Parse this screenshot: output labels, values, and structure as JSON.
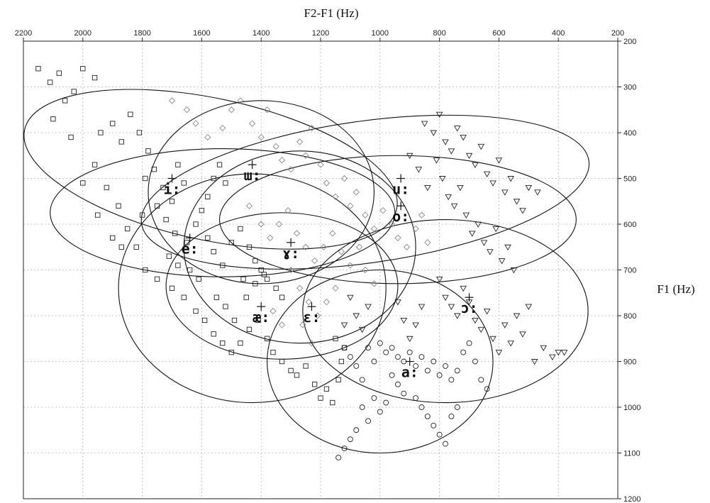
{
  "chart_data": {
    "type": "scatter",
    "title": "",
    "xlabel": "F2-F1 (Hz)",
    "ylabel": "F1 (Hz)",
    "xlim": [
      2200,
      200
    ],
    "ylim": [
      200,
      1200
    ],
    "x_reversed": true,
    "y_reversed": true,
    "x_axis_position": "top",
    "y_axis_position": "right",
    "grid": true,
    "x_ticks": [
      2200,
      2000,
      1800,
      1600,
      1400,
      1200,
      1000,
      800,
      600,
      400,
      200
    ],
    "y_ticks": [
      200,
      300,
      400,
      500,
      600,
      700,
      800,
      900,
      1000,
      1100,
      1200
    ],
    "x_tick_labels": [
      "2200",
      "2000",
      "1800",
      "1600",
      "1400",
      "1200",
      "1000",
      "800",
      "600",
      "400",
      "200"
    ],
    "y_tick_labels": [
      "200",
      "300",
      "400",
      "500",
      "600",
      "700",
      "800",
      "900",
      "1000",
      "1100",
      "1200"
    ],
    "vowels": [
      {
        "label": "i:",
        "centroid": [
          1700,
          500
        ],
        "ellipse": {
          "cx": 1570,
          "cy": 480,
          "rx": 640,
          "ry": 155,
          "rotate": 12
        },
        "marker": "square"
      },
      {
        "label": "ɯ:",
        "centroid": [
          1430,
          470
        ],
        "ellipse": {
          "cx": 1400,
          "cy": 530,
          "rx": 380,
          "ry": 200,
          "rotate": 0
        },
        "marker": "diamond"
      },
      {
        "label": "u:",
        "centroid": [
          930,
          500
        ],
        "ellipse": {
          "cx": 1050,
          "cy": 530,
          "rx": 760,
          "ry": 155,
          "rotate": -8
        },
        "marker": "triangle"
      },
      {
        "label": "o:",
        "centroid": [
          930,
          560
        ],
        "ellipse": {
          "cx": 940,
          "cy": 590,
          "rx": 600,
          "ry": 140,
          "rotate": 0
        },
        "marker": "diamond"
      },
      {
        "label": "e:",
        "centroid": [
          1640,
          630
        ],
        "ellipse": {
          "cx": 1530,
          "cy": 575,
          "rx": 580,
          "ry": 140,
          "rotate": 0
        },
        "marker": "square"
      },
      {
        "label": "ɤ:",
        "centroid": [
          1300,
          640
        ],
        "ellipse": {
          "cx": 1270,
          "cy": 650,
          "rx": 390,
          "ry": 210,
          "rotate": 0
        },
        "marker": "diamond"
      },
      {
        "label": "ɛ:",
        "centroid": [
          1230,
          780
        ],
        "ellipse": {
          "cx": 1330,
          "cy": 735,
          "rx": 390,
          "ry": 160,
          "rotate": 0
        },
        "marker": "diamond"
      },
      {
        "label": "æ:",
        "centroid": [
          1400,
          780
        ],
        "ellipse": {
          "cx": 1430,
          "cy": 740,
          "rx": 450,
          "ry": 250,
          "rotate": 0
        },
        "marker": "square"
      },
      {
        "label": "a:",
        "centroid": [
          900,
          900
        ],
        "ellipse": {
          "cx": 1000,
          "cy": 900,
          "rx": 380,
          "ry": 200,
          "rotate": 0
        },
        "marker": "circle"
      },
      {
        "label": "ɔ:",
        "centroid": [
          700,
          760
        ],
        "ellipse": {
          "cx": 780,
          "cy": 790,
          "rx": 480,
          "ry": 200,
          "rotate": 0
        },
        "marker": "triangle"
      }
    ],
    "points": {
      "square": [
        [
          2150,
          260
        ],
        [
          2110,
          290
        ],
        [
          2080,
          270
        ],
        [
          2060,
          330
        ],
        [
          2030,
          310
        ],
        [
          2000,
          260
        ],
        [
          1960,
          280
        ],
        [
          2100,
          370
        ],
        [
          2040,
          410
        ],
        [
          1940,
          400
        ],
        [
          1900,
          380
        ],
        [
          1870,
          420
        ],
        [
          1840,
          360
        ],
        [
          1810,
          400
        ],
        [
          1780,
          440
        ],
        [
          1760,
          480
        ],
        [
          1790,
          500
        ],
        [
          1730,
          520
        ],
        [
          1700,
          550
        ],
        [
          1680,
          470
        ],
        [
          1660,
          510
        ],
        [
          1750,
          560
        ],
        [
          1720,
          590
        ],
        [
          1690,
          620
        ],
        [
          1650,
          640
        ],
        [
          1620,
          600
        ],
        [
          1600,
          570
        ],
        [
          1580,
          630
        ],
        [
          1560,
          660
        ],
        [
          1530,
          690
        ],
        [
          1500,
          640
        ],
        [
          1470,
          610
        ],
        [
          1440,
          650
        ],
        [
          1420,
          680
        ],
        [
          1400,
          700
        ],
        [
          1380,
          720
        ],
        [
          1350,
          740
        ],
        [
          1330,
          760
        ],
        [
          1960,
          470
        ],
        [
          1920,
          520
        ],
        [
          1880,
          560
        ],
        [
          1850,
          610
        ],
        [
          1900,
          630
        ],
        [
          2000,
          510
        ],
        [
          1950,
          580
        ],
        [
          1870,
          650
        ],
        [
          1800,
          580
        ],
        [
          1820,
          650
        ],
        [
          1790,
          700
        ],
        [
          1750,
          720
        ],
        [
          1700,
          740
        ],
        [
          1660,
          760
        ],
        [
          1620,
          790
        ],
        [
          1590,
          810
        ],
        [
          1560,
          840
        ],
        [
          1530,
          860
        ],
        [
          1500,
          880
        ],
        [
          1470,
          860
        ],
        [
          1440,
          830
        ],
        [
          1410,
          810
        ],
        [
          1380,
          850
        ],
        [
          1360,
          880
        ],
        [
          1330,
          900
        ],
        [
          1300,
          920
        ],
        [
          1280,
          930
        ],
        [
          1250,
          910
        ],
        [
          1220,
          950
        ],
        [
          1200,
          980
        ],
        [
          1180,
          960
        ],
        [
          1160,
          990
        ],
        [
          1140,
          940
        ],
        [
          1130,
          900
        ],
        [
          1120,
          870
        ],
        [
          1150,
          850
        ],
        [
          1450,
          760
        ],
        [
          1420,
          730
        ],
        [
          1390,
          710
        ],
        [
          1460,
          720
        ],
        [
          1520,
          780
        ],
        [
          1490,
          810
        ],
        [
          1550,
          760
        ],
        [
          1610,
          720
        ],
        [
          1640,
          700
        ],
        [
          1680,
          690
        ],
        [
          1710,
          670
        ],
        [
          1580,
          540
        ],
        [
          1560,
          500
        ],
        [
          1540,
          470
        ],
        [
          1520,
          510
        ]
      ],
      "diamond": [
        [
          1700,
          330
        ],
        [
          1650,
          350
        ],
        [
          1620,
          380
        ],
        [
          1580,
          410
        ],
        [
          1530,
          390
        ],
        [
          1500,
          350
        ],
        [
          1470,
          330
        ],
        [
          1430,
          380
        ],
        [
          1400,
          410
        ],
        [
          1380,
          350
        ],
        [
          1350,
          430
        ],
        [
          1330,
          460
        ],
        [
          1300,
          480
        ],
        [
          1270,
          420
        ],
        [
          1250,
          450
        ],
        [
          1230,
          390
        ],
        [
          1200,
          470
        ],
        [
          1180,
          510
        ],
        [
          1150,
          540
        ],
        [
          1120,
          500
        ],
        [
          1100,
          560
        ],
        [
          1080,
          530
        ],
        [
          1050,
          580
        ],
        [
          1020,
          610
        ],
        [
          990,
          570
        ],
        [
          960,
          600
        ],
        [
          940,
          630
        ],
        [
          910,
          650
        ],
        [
          880,
          610
        ],
        [
          860,
          580
        ],
        [
          840,
          640
        ],
        [
          1440,
          560
        ],
        [
          1400,
          600
        ],
        [
          1370,
          630
        ],
        [
          1340,
          600
        ],
        [
          1310,
          570
        ],
        [
          1280,
          620
        ],
        [
          1250,
          650
        ],
        [
          1220,
          680
        ],
        [
          1190,
          650
        ],
        [
          1160,
          620
        ],
        [
          1130,
          660
        ],
        [
          1100,
          690
        ],
        [
          1070,
          650
        ],
        [
          1050,
          700
        ],
        [
          1020,
          730
        ],
        [
          1300,
          700
        ],
        [
          1270,
          740
        ],
        [
          1240,
          770
        ],
        [
          1210,
          800
        ],
        [
          1180,
          770
        ],
        [
          1150,
          740
        ],
        [
          1260,
          820
        ],
        [
          1230,
          860
        ],
        [
          1330,
          820
        ],
        [
          1360,
          790
        ]
      ],
      "triangle": [
        [
          850,
          380
        ],
        [
          820,
          400
        ],
        [
          800,
          360
        ],
        [
          780,
          420
        ],
        [
          760,
          440
        ],
        [
          740,
          390
        ],
        [
          720,
          410
        ],
        [
          700,
          450
        ],
        [
          680,
          470
        ],
        [
          660,
          430
        ],
        [
          640,
          490
        ],
        [
          620,
          510
        ],
        [
          600,
          460
        ],
        [
          580,
          530
        ],
        [
          560,
          500
        ],
        [
          540,
          550
        ],
        [
          520,
          570
        ],
        [
          500,
          520
        ],
        [
          470,
          530
        ],
        [
          900,
          450
        ],
        [
          870,
          480
        ],
        [
          840,
          520
        ],
        [
          810,
          460
        ],
        [
          790,
          500
        ],
        [
          770,
          540
        ],
        [
          750,
          560
        ],
        [
          730,
          520
        ],
        [
          710,
          580
        ],
        [
          690,
          620
        ],
        [
          670,
          600
        ],
        [
          650,
          640
        ],
        [
          630,
          660
        ],
        [
          610,
          610
        ],
        [
          590,
          680
        ],
        [
          570,
          650
        ],
        [
          550,
          700
        ],
        [
          800,
          720
        ],
        [
          780,
          760
        ],
        [
          760,
          780
        ],
        [
          740,
          800
        ],
        [
          720,
          740
        ],
        [
          700,
          770
        ],
        [
          680,
          810
        ],
        [
          660,
          830
        ],
        [
          640,
          790
        ],
        [
          620,
          850
        ],
        [
          600,
          880
        ],
        [
          580,
          820
        ],
        [
          560,
          860
        ],
        [
          540,
          800
        ],
        [
          520,
          840
        ],
        [
          500,
          780
        ],
        [
          480,
          900
        ],
        [
          450,
          870
        ],
        [
          420,
          890
        ],
        [
          400,
          880
        ],
        [
          380,
          880
        ],
        [
          1100,
          760
        ],
        [
          1080,
          800
        ],
        [
          1060,
          830
        ],
        [
          1040,
          780
        ],
        [
          1120,
          820
        ],
        [
          860,
          780
        ],
        [
          880,
          820
        ],
        [
          900,
          850
        ],
        [
          920,
          810
        ],
        [
          940,
          770
        ]
      ],
      "circle": [
        [
          1000,
          860
        ],
        [
          980,
          880
        ],
        [
          960,
          870
        ],
        [
          940,
          890
        ],
        [
          920,
          900
        ],
        [
          900,
          880
        ],
        [
          880,
          910
        ],
        [
          860,
          890
        ],
        [
          840,
          920
        ],
        [
          820,
          900
        ],
        [
          800,
          930
        ],
        [
          780,
          910
        ],
        [
          760,
          940
        ],
        [
          740,
          920
        ],
        [
          720,
          880
        ],
        [
          700,
          860
        ],
        [
          680,
          900
        ],
        [
          660,
          940
        ],
        [
          640,
          960
        ],
        [
          960,
          930
        ],
        [
          940,
          950
        ],
        [
          920,
          970
        ],
        [
          980,
          990
        ],
        [
          1000,
          1010
        ],
        [
          1020,
          980
        ],
        [
          1040,
          1030
        ],
        [
          1060,
          1000
        ],
        [
          1080,
          1050
        ],
        [
          1100,
          1070
        ],
        [
          1120,
          1090
        ],
        [
          1140,
          1110
        ],
        [
          880,
          980
        ],
        [
          860,
          1000
        ],
        [
          840,
          1020
        ],
        [
          820,
          1040
        ],
        [
          800,
          1060
        ],
        [
          780,
          1080
        ],
        [
          760,
          1020
        ],
        [
          740,
          1000
        ],
        [
          1060,
          940
        ],
        [
          1080,
          910
        ],
        [
          1100,
          890
        ],
        [
          1120,
          870
        ],
        [
          1020,
          900
        ],
        [
          1040,
          870
        ]
      ]
    }
  }
}
